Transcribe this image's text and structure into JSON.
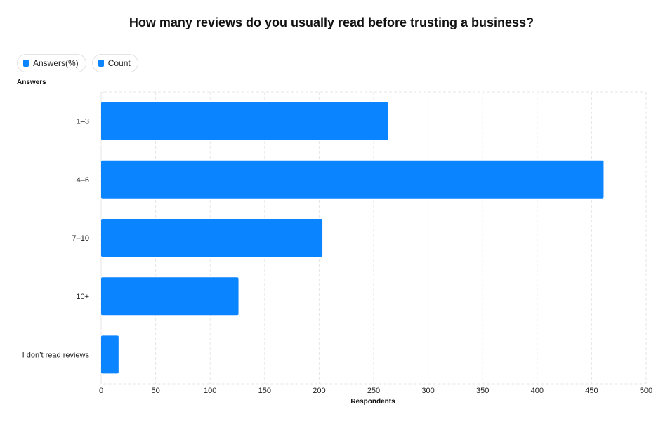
{
  "title": "How many reviews do you usually read before trusting a business?",
  "legend": [
    {
      "label": "Answers(%)",
      "color": "#0a84ff"
    },
    {
      "label": "Count",
      "color": "#0a84ff"
    }
  ],
  "chart_data": {
    "type": "bar",
    "orientation": "horizontal",
    "title": "How many reviews do you usually read before trusting a business?",
    "ylabel": "Answers",
    "xlabel": "Respondents",
    "categories": [
      "1–3",
      "4–6",
      "7–10",
      "10+",
      "I don’t read reviews"
    ],
    "values": [
      263,
      461,
      203,
      126,
      16
    ],
    "xlim": [
      0,
      500
    ],
    "xticks": [
      0,
      50,
      100,
      150,
      200,
      250,
      300,
      350,
      400,
      450,
      500
    ],
    "grid": true,
    "legend_position": "top-left",
    "bar_color": "#0a84ff"
  }
}
